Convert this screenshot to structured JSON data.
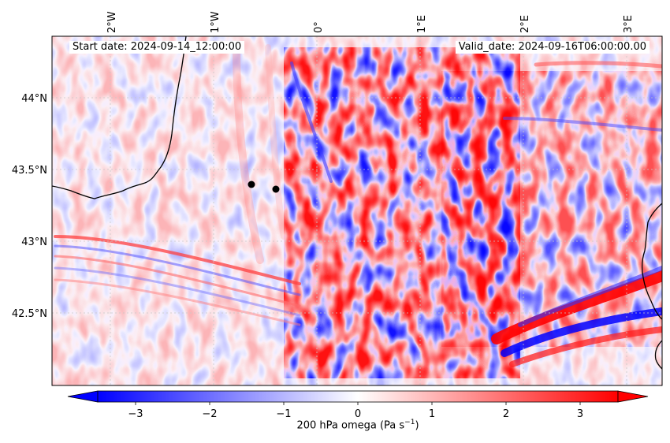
{
  "header": {
    "start_date": "Start date: 2024-09-14_12:00:00",
    "valid_date": "Valid_date: 2024-09-16T06:00:00.00"
  },
  "map": {
    "lon_labels": [
      "2°W",
      "1°W",
      "0°",
      "1°E",
      "2°E",
      "3°E"
    ],
    "lat_labels": [
      "44°N",
      "43.5°N",
      "43°N",
      "42.5°N"
    ],
    "colormap": {
      "negative": "#0000ff",
      "zero": "#ffffff",
      "positive": "#ff0000"
    },
    "coastline_color": "#000000",
    "markers": [
      "site-marker",
      "site-marker"
    ]
  },
  "colorbar": {
    "label": "200 hPa omega (Pa s",
    "label_exp": "−1",
    "label_close": ")",
    "tick_labels": [
      "−3",
      "−2",
      "−1",
      "0",
      "1",
      "2",
      "3"
    ],
    "range": [
      -3.5,
      3.5
    ],
    "extend": "both"
  }
}
